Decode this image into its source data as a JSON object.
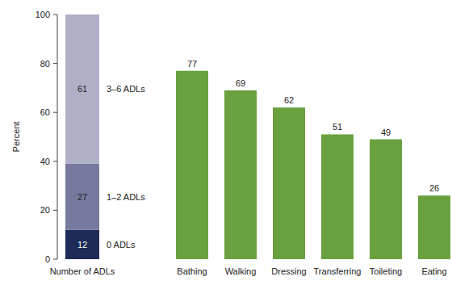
{
  "chart_data": [
    {
      "type": "bar",
      "stacked": true,
      "data_labels": true,
      "y_label": "Percent",
      "categories": [
        "Number of ADLs"
      ],
      "series": [
        {
          "name": "0 ADLs",
          "color": "#1c2b57",
          "values": [
            12
          ]
        },
        {
          "name": "1–2 ADLs",
          "color": "#77799e",
          "values": [
            27
          ]
        },
        {
          "name": "3–6 ADLs",
          "color": "#afafc8",
          "values": [
            61
          ]
        }
      ],
      "ylim": [
        0,
        100
      ],
      "yticks": [
        0,
        20,
        40,
        60,
        80,
        100
      ],
      "grid": false,
      "tick_labels": true
    },
    {
      "type": "bar",
      "data_labels": true,
      "categories": [
        "Bathing",
        "Walking",
        "Dressing",
        "Transferring",
        "Toileting",
        "Eating"
      ],
      "values": [
        77,
        69,
        62,
        51,
        49,
        26
      ],
      "color": "#6aa13f",
      "ylim": [
        0,
        100
      ],
      "grid": false,
      "tick_labels": "x"
    }
  ]
}
